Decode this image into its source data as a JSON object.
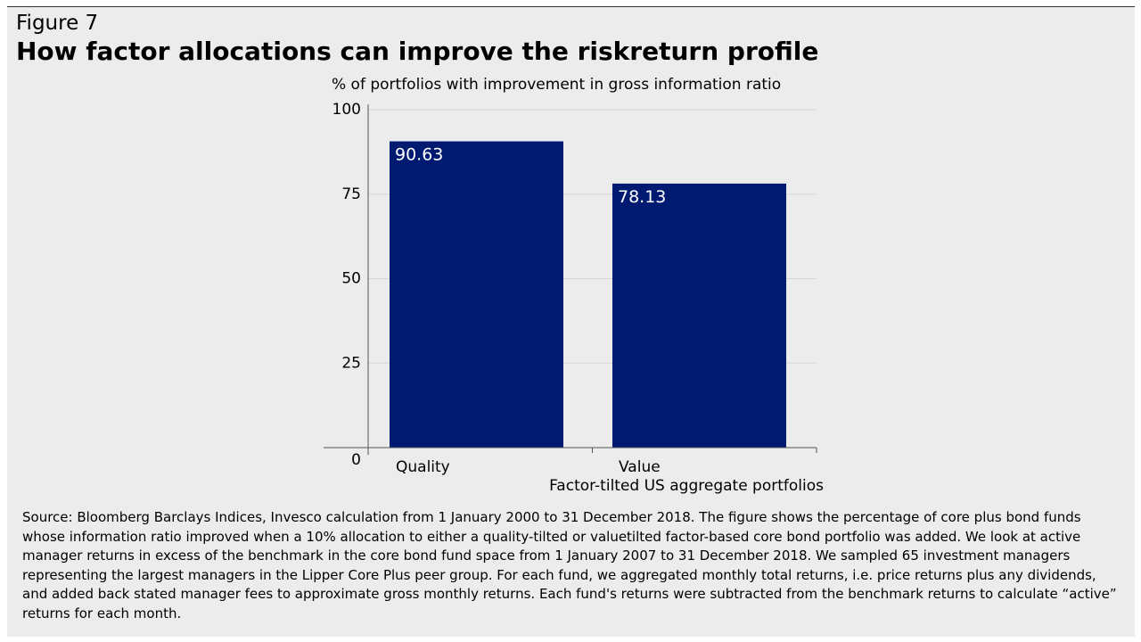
{
  "figure_label": "Figure 7",
  "title": "How factor allocations can improve the riskreturn profile",
  "chart_data": {
    "type": "bar",
    "subtitle": "% of portfolios with improvement in gross information ratio",
    "categories": [
      "Quality",
      "Value"
    ],
    "values": [
      90.63,
      78.13
    ],
    "value_labels": [
      "90.63",
      "78.13"
    ],
    "xlabel": "Factor-tilted US aggregate portfolios",
    "ylabel": "",
    "ylim": [
      0,
      100
    ],
    "yticks": [
      0,
      25,
      50,
      75,
      100
    ],
    "grid": true,
    "legend": "none",
    "bar_color": "#001a72",
    "label_color": "#ffffff",
    "grid_color": "#d6d6d6",
    "axis_color": "#555555"
  },
  "source": "Source: Bloomberg Barclays Indices, Invesco calculation from 1 January 2000 to 31 December 2018. The figure shows the percentage of core plus bond funds whose information ratio improved when a 10% allocation to either a quality-tilted or valuetilted factor-based core bond portfolio was added. We look at active manager returns in excess of the benchmark in the core bond fund space from 1 January 2007 to 31 December 2018. We sampled 65 investment managers representing the largest managers in the Lipper Core Plus peer group. For each fund, we aggregated monthly total returns, i.e. price returns plus any dividends, and added back stated manager fees to approximate gross monthly returns. Each fund's returns were subtracted from the benchmark returns to calculate “active” returns for each month."
}
